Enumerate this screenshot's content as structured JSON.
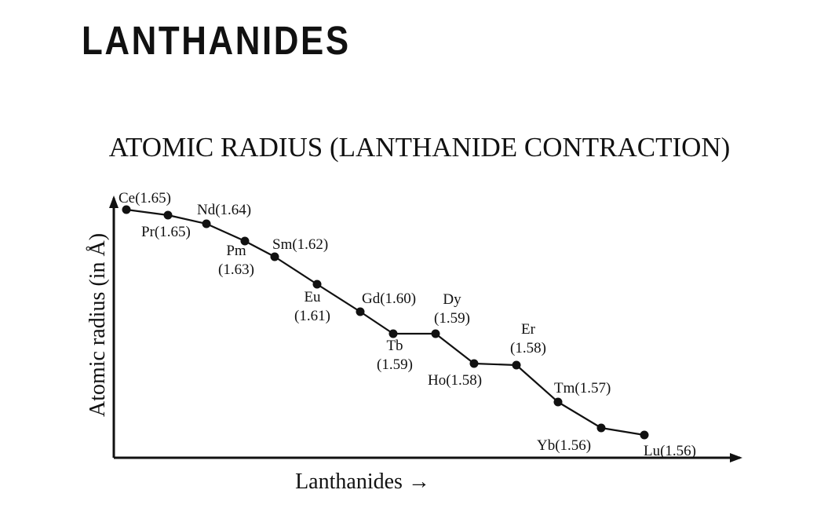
{
  "page": {
    "title": "LANTHANIDES"
  },
  "chart_data": {
    "type": "line",
    "title": "ATOMIC RADIUS (LANTHANIDE CONTRACTION)",
    "xlabel": "Lanthanides →",
    "ylabel": "Atomic radius (in Å)",
    "grid": false,
    "series": [
      {
        "points": [
          {
            "x": "Ce",
            "y": 1.65,
            "label": [
              "Ce(1.65)"
            ]
          },
          {
            "x": "Pr",
            "y": 1.65,
            "label": [
              "Pr(1.65)"
            ]
          },
          {
            "x": "Nd",
            "y": 1.64,
            "label": [
              "Nd(1.64)"
            ]
          },
          {
            "x": "Pm",
            "y": 1.63,
            "label": [
              "Pm",
              "(1.63)"
            ]
          },
          {
            "x": "Sm",
            "y": 1.62,
            "label": [
              "Sm(1.62)"
            ]
          },
          {
            "x": "Eu",
            "y": 1.61,
            "label": [
              "Eu",
              "(1.61)"
            ]
          },
          {
            "x": "Gd",
            "y": 1.6,
            "label": [
              "Gd(1.60)"
            ]
          },
          {
            "x": "Tb",
            "y": 1.59,
            "label": [
              "Tb",
              "(1.59)"
            ]
          },
          {
            "x": "Dy",
            "y": 1.59,
            "label": [
              "Dy",
              "(1.59)"
            ]
          },
          {
            "x": "Ho",
            "y": 1.58,
            "label": [
              "Ho(1.58)"
            ]
          },
          {
            "x": "Er",
            "y": 1.58,
            "label": [
              "Er",
              "(1.58)"
            ]
          },
          {
            "x": "Tm",
            "y": 1.57,
            "label": [
              "Tm(1.57)"
            ]
          },
          {
            "x": "Yb",
            "y": 1.56,
            "label": [
              "Yb(1.56)"
            ]
          },
          {
            "x": "Lu",
            "y": 1.56,
            "label": [
              "Lu(1.56)"
            ]
          }
        ]
      }
    ]
  },
  "colors": {
    "ink": "#111111",
    "background": "#ffffff"
  }
}
